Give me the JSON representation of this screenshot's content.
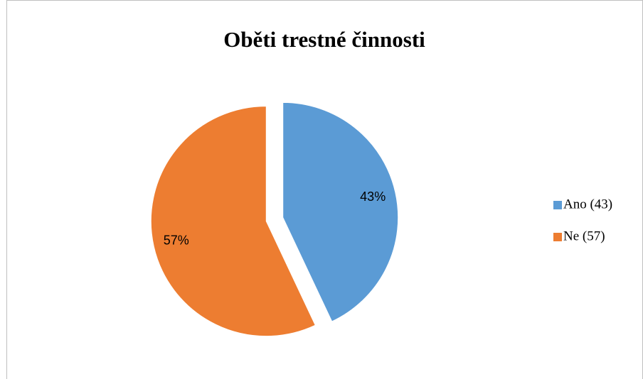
{
  "chart_data": {
    "type": "pie",
    "title": "Oběti trestné činnosti",
    "categories": [
      "Ano (43)",
      "Ne (57)"
    ],
    "values": [
      43,
      57
    ],
    "value_labels": [
      "43%",
      "57%"
    ],
    "colors": [
      "#5b9bd5",
      "#ed7d31"
    ],
    "legend": "right"
  }
}
